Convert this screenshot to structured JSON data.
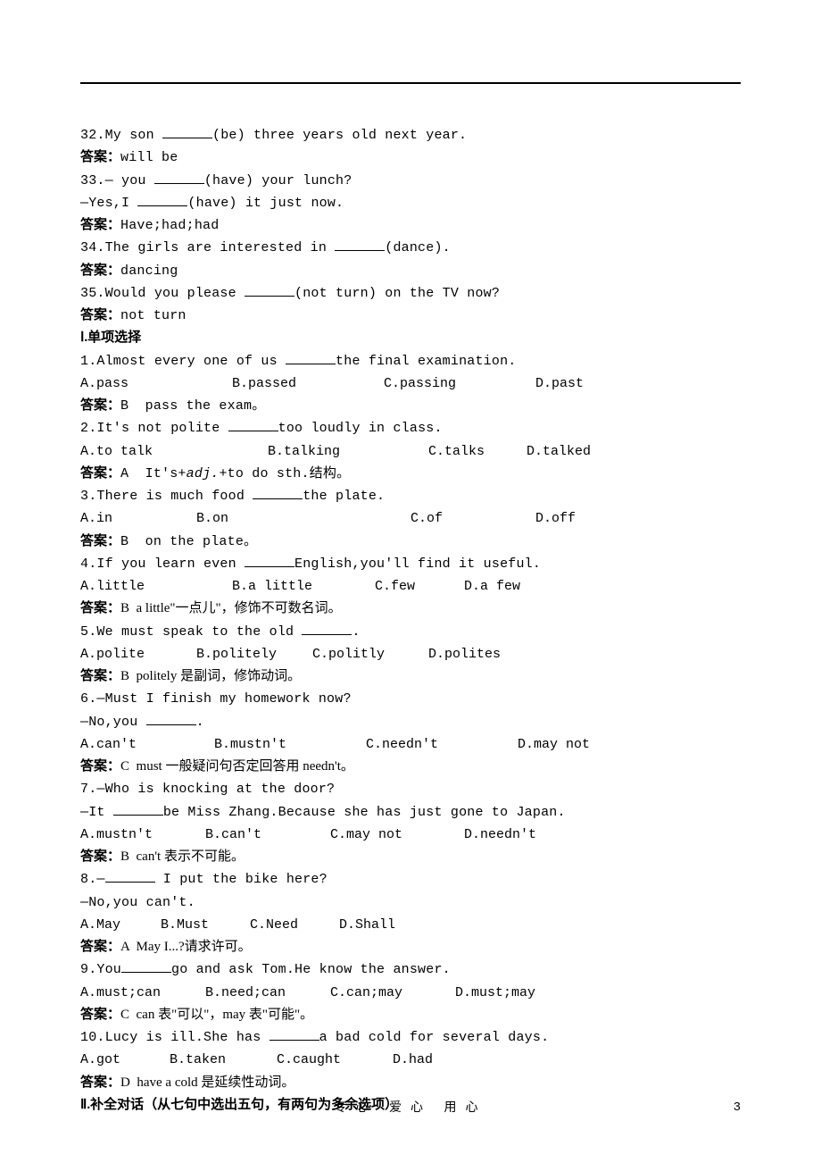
{
  "q32": {
    "text_a": "32.My son ",
    "text_b": "(be) three years old next year.",
    "ans_label": "答案：",
    "ans": "will be"
  },
  "q33": {
    "text_a": "33.— you ",
    "text_b": "(have) your lunch?",
    "line2_a": "—Yes,I ",
    "line2_b": "(have) it just now.",
    "ans_label": "答案：",
    "ans": "Have;had;had"
  },
  "q34": {
    "text_a": "34.The girls are interested in ",
    "text_b": "(dance).",
    "ans_label": "答案：",
    "ans": "dancing"
  },
  "q35": {
    "text_a": "35.Would you please ",
    "text_b": "(not turn) on the TV now?",
    "ans_label": "答案：",
    "ans": "not turn"
  },
  "section1": "Ⅰ.单项选择",
  "mc1": {
    "q_a": "1.Almost every one of us ",
    "q_b": "the final examination.",
    "optA": "A.pass",
    "optB": "B.passed",
    "optC": "C.passing",
    "optD": "D.past",
    "ans_label": "答案：",
    "ans": "B  pass the exam。"
  },
  "mc2": {
    "q_a": "2.It's not polite ",
    "q_b": "too loudly in class.",
    "optA": "A.to talk",
    "optB": "B.talking",
    "optC": "C.talks",
    "optD": "D.talked",
    "ans_label": "答案：",
    "ans_a": "A  It's+",
    "ans_i": "adj.",
    "ans_b": "+to do sth.结构。"
  },
  "mc3": {
    "q_a": "3.There is much food ",
    "q_b": "the plate.",
    "optA": "A.in",
    "optB": "B.on",
    "optC": "C.of",
    "optD": "D.off",
    "ans_label": "答案：",
    "ans": "B  on the plate。"
  },
  "mc4": {
    "q_a": "4.If you learn even ",
    "q_b": "English,you'll find it useful.",
    "optA": "A.little",
    "optB": "B.a little",
    "optC": "C.few",
    "optD": "D.a few",
    "ans_label": "答案：",
    "ans": "B  a little\"一点儿\"，修饰不可数名词。"
  },
  "mc5": {
    "q_a": "5.We must speak to the old ",
    "q_b": ".",
    "optA": "A.polite",
    "optB": "B.politely",
    "optC": "C.politly",
    "optD": "D.polites",
    "ans_label": "答案：",
    "ans": "B  politely 是副词，修饰动词。"
  },
  "mc6": {
    "q1": "6.—Must I finish my homework now?",
    "q2_a": "—No,you ",
    "q2_b": ".",
    "optA": "A.can't",
    "optB": "B.mustn't",
    "optC": "C.needn't",
    "optD": "D.may not",
    "ans_label": "答案：",
    "ans": "C  must 一般疑问句否定回答用 needn't。"
  },
  "mc7": {
    "q1": "7.—Who is knocking at the door?",
    "q2_a": "—It ",
    "q2_b": "be Miss Zhang.Because she has just gone to Japan.",
    "optA": "A.mustn't",
    "optB": "B.can't",
    "optC": "C.may not",
    "optD": "D.needn't",
    "ans_label": "答案：",
    "ans": "B  can't 表示不可能。"
  },
  "mc8": {
    "q1_a": "8.—",
    "q1_b": " I put the bike here?",
    "q2": "—No,you can't.",
    "optA": "A.May",
    "optB": "B.Must",
    "optC": "C.Need",
    "optD": "D.Shall",
    "ans_label": "答案：",
    "ans": "A  May I...?请求许可。"
  },
  "mc9": {
    "q_a": "9.You",
    "q_b": "go and ask Tom.He know the answer.",
    "optA": "A.must;can",
    "optB": "B.need;can",
    "optC": "C.can;may",
    "optD": "D.must;may",
    "ans_label": "答案：",
    "ans": "C  can 表\"可以\"，may 表\"可能\"。"
  },
  "mc10": {
    "q_a": "10.Lucy is ill.She has ",
    "q_b": "a bad cold for several days.",
    "optA": "A.got",
    "optB": "B.taken",
    "optC": "C.caught",
    "optD": "D.had",
    "ans_label": "答案：",
    "ans": "D  have a cold 是延续性动词。"
  },
  "section2": "Ⅱ.补全对话（从七句中选出五句，有两句为多余选项）",
  "footer": "专心   爱心   用心",
  "pagenum": "3",
  "layout": {
    "opt_widths_4": [
      "170px",
      "170px",
      "170px",
      "140px"
    ],
    "opt_widths_3a": [
      "210px",
      "180px",
      "110px",
      "110px"
    ],
    "opt_widths_3b": [
      "130px",
      "240px",
      "140px",
      "140px"
    ],
    "opt_widths_4b": [
      "170px",
      "160px",
      "100px",
      "100px"
    ],
    "opt_widths_5": [
      "130px",
      "130px",
      "130px",
      "130px"
    ],
    "opt_widths_6": [
      "150px",
      "170px",
      "170px",
      "150px"
    ],
    "opt_widths_7": [
      "140px",
      "140px",
      "150px",
      "140px"
    ],
    "opt_widths_8": [
      "90px",
      "100px",
      "100px",
      "100px"
    ],
    "opt_widths_9": [
      "140px",
      "140px",
      "140px",
      "140px"
    ],
    "opt_widths_10": [
      "100px",
      "120px",
      "130px",
      "100px"
    ]
  }
}
